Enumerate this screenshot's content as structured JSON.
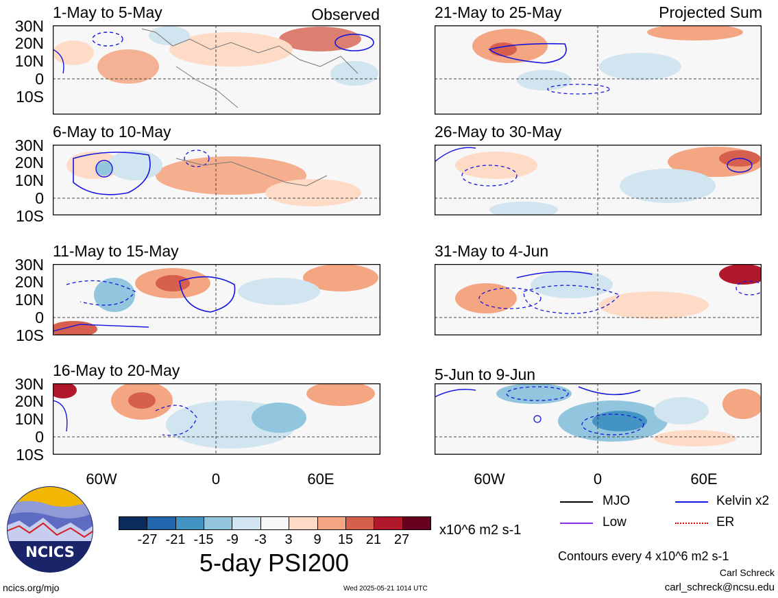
{
  "header": {
    "observed_label": "Observed",
    "projected_label": "Projected Sum"
  },
  "panels_left": [
    {
      "title": "1-May to 5-May"
    },
    {
      "title": "6-May to 10-May"
    },
    {
      "title": "11-May to 15-May"
    },
    {
      "title": "16-May to 20-May"
    }
  ],
  "panels_right": [
    {
      "title": "21-May to 25-May"
    },
    {
      "title": "26-May to 30-May"
    },
    {
      "title": "31-May to 4-Jun"
    },
    {
      "title": "5-Jun to 9-Jun"
    }
  ],
  "latitude_labels": [
    "30N",
    "20N",
    "10N",
    "0",
    "10S"
  ],
  "longitude_labels": [
    "60W",
    "0",
    "60E"
  ],
  "colorbar": {
    "ticks": [
      "-27",
      "-21",
      "-15",
      "-9",
      "-3",
      "3",
      "9",
      "15",
      "21",
      "27"
    ],
    "colors": [
      "#0a2d5e",
      "#2166ac",
      "#4393c3",
      "#92c5de",
      "#d1e5f0",
      "#f7f7f7",
      "#fddbc7",
      "#f4a582",
      "#d6604d",
      "#b2182b",
      "#67001f"
    ],
    "units": "x10^6 m2 s-1",
    "title": "5-day PSI200"
  },
  "legend": {
    "items": [
      {
        "label": "MJO",
        "color": "#000000",
        "style": "solid"
      },
      {
        "label": "Kelvin x2",
        "color": "#1515e0",
        "style": "solid"
      },
      {
        "label": "Low",
        "color": "#8a2be2",
        "style": "solid"
      },
      {
        "label": "ER",
        "color": "#e00000",
        "style": "dotted"
      }
    ],
    "contour_note": "Contours every 4 x10^6 m2 s-1"
  },
  "footer": {
    "author": "Carl Schreck",
    "email": "carl_schreck@ncsu.edu",
    "site": "ncics.org/mjo",
    "timestamp": "Wed 2025-05-21 1014 UTC",
    "logo_text": "NCICS"
  }
}
